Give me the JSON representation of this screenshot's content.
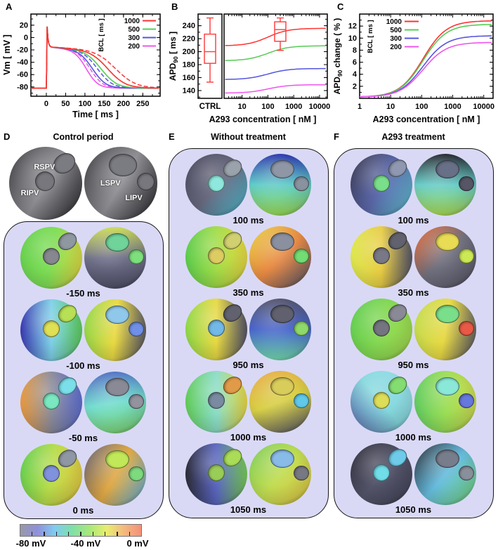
{
  "panels": {
    "A": {
      "letter": "A"
    },
    "B": {
      "letter": "B"
    },
    "C": {
      "letter": "C"
    },
    "D": {
      "letter": "D",
      "title": "Control period",
      "anatomy_labels": {
        "rspv": "RSPV",
        "ripv": "RIPV",
        "lspv": "LSPV",
        "lipv": "LIPV"
      },
      "anatomy": {
        "left": {
          "a": 120,
          "c": [
            "#3a3a3e",
            "#8f8f94",
            "#28282c"
          ],
          "h1": "#7b7b82",
          "h2": "#77777d"
        },
        "right": {
          "a": 120,
          "c": [
            "#3a3a3e",
            "#8f8f94",
            "#28282c"
          ],
          "h1": "#7b7b82",
          "h2": "#77777d"
        }
      },
      "frames": [
        {
          "time": "-150 ms",
          "left": {
            "a": 100,
            "c": [
              "#66cf4e",
              "#7edd55",
              "#ead943"
            ],
            "h1": "#8f97a0",
            "h2": "#87878f"
          },
          "right": {
            "a": 178,
            "c": [
              "#cfe055",
              "#70708a",
              "#4e4e66"
            ],
            "h1": "#6fd39a",
            "h2": "#7de07d"
          }
        },
        {
          "time": "-100 ms",
          "left": {
            "a": 90,
            "c": [
              "#3a3ab0",
              "#7fd0e8",
              "#5ecc5e"
            ],
            "h1": "#b8e055",
            "h2": "#e0e055"
          },
          "right": {
            "a": 95,
            "c": [
              "#8fd84a",
              "#ead943",
              "#55556a"
            ],
            "h1": "#8fc8ea",
            "h2": "#7090e8"
          }
        },
        {
          "time": "-50 ms",
          "left": {
            "a": 90,
            "c": [
              "#e89a40",
              "#8a8a98",
              "#6070d0"
            ],
            "h1": "#7adfe8",
            "h2": "#7ae8c0"
          },
          "right": {
            "a": 170,
            "c": [
              "#4a5ec0",
              "#74ddd0",
              "#7ed46a"
            ],
            "h1": "#8a8a96",
            "h2": "#93939f"
          }
        },
        {
          "time": "0 ms",
          "left": {
            "a": 100,
            "c": [
              "#5ecc50",
              "#b8dc4a",
              "#e8ca44"
            ],
            "h1": "#8f97a4",
            "h2": "#8092dd"
          },
          "right": {
            "a": 120,
            "c": [
              "#5e5e72",
              "#e0a844",
              "#62b8e8"
            ],
            "h1": "#c0e858",
            "h2": "#7eda7e"
          }
        }
      ]
    },
    "E": {
      "letter": "E",
      "title": "Without treatment",
      "frames": [
        {
          "time": "100 ms",
          "left": {
            "a": 130,
            "c": [
              "#46465a",
              "#68687e",
              "#52c8dd"
            ],
            "h1": "#9aa2ac",
            "h2": "#8fe8dd"
          },
          "right": {
            "a": 180,
            "c": [
              "#2a36aa",
              "#62ccc8",
              "#9add55"
            ],
            "h1": "#8f97a6",
            "h2": "#8a92a0"
          }
        },
        {
          "time": "350 ms",
          "left": {
            "a": 90,
            "c": [
              "#5ecc4e",
              "#a0dc48",
              "#e8d943"
            ],
            "h1": "#d0d070",
            "h2": "#ddcc62"
          },
          "right": {
            "a": 135,
            "c": [
              "#e8d344",
              "#e88a44",
              "#56566c"
            ],
            "h1": "#8a90a0",
            "h2": "#72dd72"
          }
        },
        {
          "time": "950 ms",
          "left": {
            "a": 90,
            "c": [
              "#8fd84a",
              "#e8d943",
              "#55556a"
            ],
            "h1": "#62626f",
            "h2": "#72b8e8"
          },
          "right": {
            "a": 180,
            "c": [
              "#54546a",
              "#4a66cc",
              "#74ddb0"
            ],
            "h1": "#60606e",
            "h2": "#8fd86a"
          }
        },
        {
          "time": "1000 ms",
          "left": {
            "a": 90,
            "c": [
              "#62cc58",
              "#8adcc8",
              "#e8d943"
            ],
            "h1": "#e09a48",
            "h2": "#7a8aa0"
          },
          "right": {
            "a": 160,
            "c": [
              "#e8a844",
              "#d8d046",
              "#56566a"
            ],
            "h1": "#d8cc5a",
            "h2": "#60c8e8"
          }
        },
        {
          "time": "1050 ms",
          "left": {
            "a": 90,
            "c": [
              "#2c2c38",
              "#5a66c0",
              "#78cc5a"
            ],
            "h1": "#aadc58",
            "h2": "#9acc58"
          },
          "right": {
            "a": 130,
            "c": [
              "#78cc5a",
              "#c0dc52",
              "#e8c846"
            ],
            "h1": "#88bbe8",
            "h2": "#787884"
          }
        }
      ]
    },
    "F": {
      "letter": "F",
      "title": "A293 treatment",
      "frames": [
        {
          "time": "100 ms",
          "left": {
            "a": 120,
            "c": [
              "#38384a",
              "#5a66a8",
              "#66ccdd"
            ],
            "h1": "#8f98b0",
            "h2": "#7adf8a"
          },
          "right": {
            "a": 180,
            "c": [
              "#26262e",
              "#68ccc8",
              "#aadc55"
            ],
            "h1": "#687088",
            "h2": "#565666"
          }
        },
        {
          "time": "350 ms",
          "left": {
            "a": 90,
            "c": [
              "#dde84e",
              "#e8cc44",
              "#56566a"
            ],
            "h1": "#62626e",
            "h2": "#787886"
          },
          "right": {
            "a": 135,
            "c": [
              "#e86a36",
              "#70707e",
              "#565668"
            ],
            "h1": "#e8dc55",
            "h2": "#cce855"
          }
        },
        {
          "time": "950 ms",
          "left": {
            "a": 110,
            "c": [
              "#5ecc52",
              "#84d852",
              "#a8dc50"
            ],
            "h1": "#8a8a96",
            "h2": "#757581"
          },
          "right": {
            "a": 100,
            "c": [
              "#c0dc50",
              "#e8d944",
              "#56566a"
            ],
            "h1": "#7adf8a",
            "h2": "#e85a46"
          }
        },
        {
          "time": "1000 ms",
          "left": {
            "a": 50,
            "c": [
              "#5a66a8",
              "#84d8dd",
              "#9adde8"
            ],
            "h1": "#84dd70",
            "h2": "#dddd58"
          },
          "right": {
            "a": 90,
            "c": [
              "#62cc62",
              "#9add55",
              "#ccdc52"
            ],
            "h1": "#8ae8d8",
            "h2": "#6677dd"
          }
        },
        {
          "time": "1050 ms",
          "left": {
            "a": 130,
            "c": [
              "#2e2e3a",
              "#54546a",
              "#44445a"
            ],
            "h1": "#6eccea",
            "h2": "#70dde8"
          },
          "right": {
            "a": 130,
            "c": [
              "#26262e",
              "#66bbdd",
              "#78dd78"
            ],
            "h1": "#787d8c",
            "h2": "#8a8f9c"
          }
        }
      ]
    }
  },
  "colorbar": {
    "tick_labels": [
      "-80 mV",
      "-40 mV",
      "0 mV"
    ],
    "label_positions_pct": [
      8,
      47,
      84
    ],
    "gradient": [
      "#9898a8",
      "#9090dc",
      "#80ccf0",
      "#7fdfa8",
      "#a8e87a",
      "#e8ee6e",
      "#f4b97e",
      "#f49078"
    ],
    "num_ticks": 9
  },
  "chart_data": [
    {
      "id": "A",
      "type": "line",
      "xlabel": "Time [ ms ]",
      "ylabel": "Vm [ mV ]",
      "xlim": [
        -40,
        295
      ],
      "ylim": [
        -95,
        38
      ],
      "xticks": [
        0,
        50,
        100,
        150,
        200,
        250
      ],
      "yticks": [
        20,
        0,
        -20,
        -40,
        -60,
        -80
      ],
      "x_minor_step": 25,
      "y_minor_step": 10,
      "legend_title": "BCL [ ms ]",
      "legend_position": "top-right",
      "waveform": {
        "rest_mV": -82,
        "peak_mV": 25,
        "plateau_mV": -15
      },
      "line_styles": {
        "control": "solid",
        "a293": "dashed"
      },
      "series": [
        {
          "name": "1000",
          "color": "#ff3333",
          "apd90_control_ms": 209,
          "apd90_a293_ms": 236
        },
        {
          "name": "500",
          "color": "#55cc55",
          "apd90_control_ms": 186,
          "apd90_a293_ms": 209
        },
        {
          "name": "300",
          "color": "#5555dd",
          "apd90_control_ms": 157,
          "apd90_a293_ms": 174
        },
        {
          "name": "200",
          "color": "#ee55ee",
          "apd90_control_ms": 136,
          "apd90_a293_ms": 149
        }
      ]
    },
    {
      "id": "B",
      "type": "line+boxplot",
      "xlabel": "A293 concentration [ nM ]",
      "ylabel": "APD90 [ ms ]",
      "ylabel_parts": {
        "pre": "APD",
        "sub": "90",
        "post": " [ ms ]"
      },
      "x_scale": "log",
      "xlim": [
        2,
        20000
      ],
      "ylim": [
        128,
        258
      ],
      "xticks": [
        10,
        100,
        1000,
        10000
      ],
      "yticks": [
        140,
        160,
        180,
        200,
        220,
        240
      ],
      "ctrl_label": "CTRL",
      "boxplots": [
        {
          "x": "CTRL",
          "whisker_low": 153,
          "q1": 182,
          "median": 200,
          "q3": 227,
          "whisker_high": 252,
          "color": "#ff4444"
        },
        {
          "x": 300,
          "whisker_low": 202,
          "q1": 216,
          "median": 234,
          "q3": 246,
          "whisker_high": 252,
          "color": "#ff4444"
        }
      ],
      "series": [
        {
          "name": "1000",
          "color": "#ff3333",
          "y_start": 209,
          "y_end": 236,
          "ec50_nM": 100,
          "hill": 1.1
        },
        {
          "name": "500",
          "color": "#55cc55",
          "y_start": 186,
          "y_end": 209,
          "ec50_nM": 100,
          "hill": 1.1
        },
        {
          "name": "300",
          "color": "#5555dd",
          "y_start": 157,
          "y_end": 174,
          "ec50_nM": 100,
          "hill": 1.1
        },
        {
          "name": "200",
          "color": "#ee55ee",
          "y_start": 136,
          "y_end": 149,
          "ec50_nM": 100,
          "hill": 1.1
        }
      ]
    },
    {
      "id": "C",
      "type": "line",
      "xlabel": "A293 concentration [ nM ]",
      "ylabel": "APD90 change ( % )",
      "ylabel_parts": {
        "pre": "APD",
        "sub": "90",
        "post": " change ( % )"
      },
      "x_scale": "log",
      "xlim": [
        1,
        20000
      ],
      "ylim": [
        0,
        14
      ],
      "xticks": [
        1,
        10,
        100,
        1000,
        10000
      ],
      "yticks": [
        2,
        4,
        6,
        8,
        10,
        12
      ],
      "y_minor_step": 1,
      "legend_title": "BCL [ ms ]",
      "legend_position": "top-left",
      "series": [
        {
          "name": "1000",
          "color": "#ff3333",
          "y_start": 0.2,
          "y_end": 12.9,
          "ec50_nM": 110,
          "hill": 1.15
        },
        {
          "name": "500",
          "color": "#55cc55",
          "y_start": 0.2,
          "y_end": 12.3,
          "ec50_nM": 110,
          "hill": 1.15
        },
        {
          "name": "300",
          "color": "#5555dd",
          "y_start": 0.2,
          "y_end": 10.4,
          "ec50_nM": 110,
          "hill": 1.15
        },
        {
          "name": "200",
          "color": "#ee55ee",
          "y_start": 0.2,
          "y_end": 9.3,
          "ec50_nM": 110,
          "hill": 1.15
        }
      ]
    }
  ]
}
